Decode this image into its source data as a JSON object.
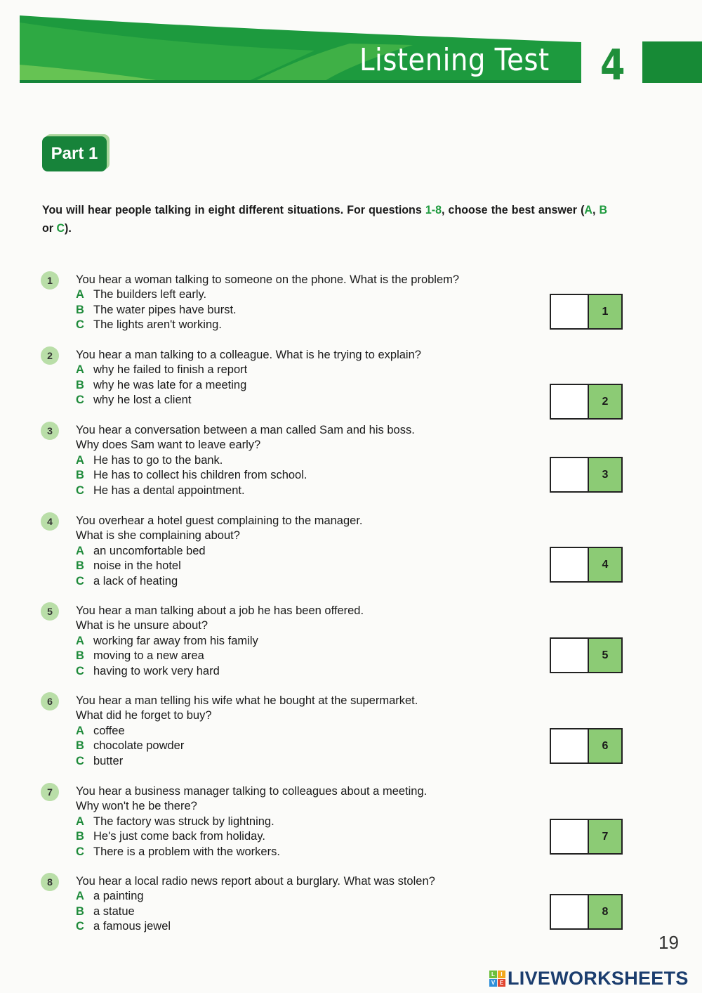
{
  "header": {
    "title": "Listening Test",
    "test_number": "4"
  },
  "part_label": "Part 1",
  "instructions": {
    "before": "You will hear people talking in eight different situations. For questions ",
    "range": "1-8",
    "middle": ", choose the best answer (",
    "a": "A",
    ", ": ", ",
    "b": "B",
    "or": " or ",
    "c": "C",
    "end": ")."
  },
  "questions": [
    {
      "num": "1",
      "stem": [
        "You hear a woman talking to someone on the phone. What is the problem?"
      ],
      "options": [
        {
          "letter": "A",
          "text": "The builders left early."
        },
        {
          "letter": "B",
          "text": "The water pipes have burst."
        },
        {
          "letter": "C",
          "text": "The lights aren't working."
        }
      ],
      "answer": ""
    },
    {
      "num": "2",
      "stem": [
        "You hear a man talking to a colleague. What is he trying to explain?"
      ],
      "options": [
        {
          "letter": "A",
          "text": "why he failed to finish a report"
        },
        {
          "letter": "B",
          "text": "why he was late for a meeting"
        },
        {
          "letter": "C",
          "text": "why he lost a client"
        }
      ],
      "answer": ""
    },
    {
      "num": "3",
      "stem": [
        "You hear a conversation between a man called Sam and his boss.",
        "Why does Sam want to leave early?"
      ],
      "options": [
        {
          "letter": "A",
          "text": "He has to go to the bank."
        },
        {
          "letter": "B",
          "text": "He has to collect his children from school."
        },
        {
          "letter": "C",
          "text": "He has a dental appointment."
        }
      ],
      "answer": ""
    },
    {
      "num": "4",
      "stem": [
        "You overhear a hotel guest complaining to the manager.",
        "What is she complaining about?"
      ],
      "options": [
        {
          "letter": "A",
          "text": "an uncomfortable bed"
        },
        {
          "letter": "B",
          "text": "noise in the hotel"
        },
        {
          "letter": "C",
          "text": "a lack of heating"
        }
      ],
      "answer": ""
    },
    {
      "num": "5",
      "stem": [
        "You hear a man talking about a job he has been offered.",
        "What is he unsure about?"
      ],
      "options": [
        {
          "letter": "A",
          "text": "working far away from his family"
        },
        {
          "letter": "B",
          "text": "moving to a new area"
        },
        {
          "letter": "C",
          "text": "having to work very hard"
        }
      ],
      "answer": ""
    },
    {
      "num": "6",
      "stem": [
        "You hear a man telling his wife what he bought at the supermarket.",
        "What did he forget to buy?"
      ],
      "options": [
        {
          "letter": "A",
          "text": "coffee"
        },
        {
          "letter": "B",
          "text": "chocolate powder"
        },
        {
          "letter": "C",
          "text": "butter"
        }
      ],
      "answer": ""
    },
    {
      "num": "7",
      "stem": [
        "You hear a business manager talking to colleagues about a meeting.",
        "Why won't he be there?"
      ],
      "options": [
        {
          "letter": "A",
          "text": "The factory was struck by lightning."
        },
        {
          "letter": "B",
          "text": "He's just come back from holiday."
        },
        {
          "letter": "C",
          "text": "There is a problem with the workers."
        }
      ],
      "answer": ""
    },
    {
      "num": "8",
      "stem": [
        "You hear a local radio news report about a burglary. What was stolen?"
      ],
      "options": [
        {
          "letter": "A",
          "text": "a painting"
        },
        {
          "letter": "B",
          "text": "a statue"
        },
        {
          "letter": "C",
          "text": "a famous jewel"
        }
      ],
      "answer": ""
    }
  ],
  "page_number": "19",
  "brand": {
    "name": "LIVEWORKSHEETS",
    "logo_letters": [
      "L",
      "I",
      "V",
      "E"
    ]
  },
  "colors": {
    "accent_green": "#178a36",
    "answer_box_green": "#8ccb75",
    "brand_blue": "#1b3d6e"
  }
}
